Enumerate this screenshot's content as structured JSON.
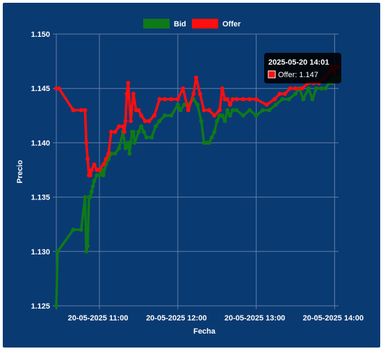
{
  "colors": {
    "background": "#0a3a72",
    "grid": "#5f7fa8",
    "text": "#ffffff",
    "bid": "#0f7a18",
    "offer": "#ff0f0f",
    "tooltip_bg": "#000000"
  },
  "tooltip": {
    "title": "2025-05-20 14:01",
    "label": "Offer: 1.147",
    "series": "Offer",
    "x": "2025-05-20 14:01",
    "y": 1.147
  },
  "chart_data": {
    "type": "line",
    "title": "",
    "xlabel": "Fecha",
    "ylabel": "Precio",
    "legend_position": "top",
    "grid": true,
    "xlim": [
      "2025-05-20 10:27",
      "2025-05-20 14:03"
    ],
    "ylim": [
      1.125,
      1.15
    ],
    "x_ticks": [
      "20-05-2025 11:00",
      "20-05-2025 12:00",
      "20-05-2025 13:00",
      "20-05-2025 14:00"
    ],
    "y_ticks": [
      "1.125",
      "1.130",
      "1.135",
      "1.140",
      "1.145",
      "1.150"
    ],
    "series": [
      {
        "name": "Bid",
        "color": "#0f7a18",
        "x": [
          "2025-05-20 10:27",
          "2025-05-20 10:28",
          "2025-05-20 10:40",
          "2025-05-20 10:46",
          "2025-05-20 10:49",
          "2025-05-20 10:50",
          "2025-05-20 10:51",
          "2025-05-20 10:52",
          "2025-05-20 10:53",
          "2025-05-20 10:54",
          "2025-05-20 10:55",
          "2025-05-20 10:56",
          "2025-05-20 10:58",
          "2025-05-20 11:00",
          "2025-05-20 11:02",
          "2025-05-20 11:03",
          "2025-05-20 11:05",
          "2025-05-20 11:07",
          "2025-05-20 11:09",
          "2025-05-20 11:12",
          "2025-05-20 11:15",
          "2025-05-20 11:18",
          "2025-05-20 11:20",
          "2025-05-20 11:22",
          "2025-05-20 11:23",
          "2025-05-20 11:25",
          "2025-05-20 11:26",
          "2025-05-20 11:27",
          "2025-05-20 11:30",
          "2025-05-20 11:32",
          "2025-05-20 11:34",
          "2025-05-20 11:36",
          "2025-05-20 11:40",
          "2025-05-20 11:43",
          "2025-05-20 11:46",
          "2025-05-20 11:50",
          "2025-05-20 11:55",
          "2025-05-20 12:00",
          "2025-05-20 12:02",
          "2025-05-20 12:05",
          "2025-05-20 12:08",
          "2025-05-20 12:12",
          "2025-05-20 12:15",
          "2025-05-20 12:18",
          "2025-05-20 12:20",
          "2025-05-20 12:22",
          "2025-05-20 12:24",
          "2025-05-20 12:26",
          "2025-05-20 12:28",
          "2025-05-20 12:30",
          "2025-05-20 12:32",
          "2025-05-20 12:34",
          "2025-05-20 12:36",
          "2025-05-20 12:38",
          "2025-05-20 12:40",
          "2025-05-20 12:42",
          "2025-05-20 12:45",
          "2025-05-20 12:50",
          "2025-05-20 12:55",
          "2025-05-20 13:00",
          "2025-05-20 13:05",
          "2025-05-20 13:10",
          "2025-05-20 13:15",
          "2025-05-20 13:20",
          "2025-05-20 13:25",
          "2025-05-20 13:30",
          "2025-05-20 13:33",
          "2025-05-20 13:36",
          "2025-05-20 13:40",
          "2025-05-20 13:43",
          "2025-05-20 13:46",
          "2025-05-20 13:50",
          "2025-05-20 13:53",
          "2025-05-20 13:56",
          "2025-05-20 13:58",
          "2025-05-20 14:00",
          "2025-05-20 14:01",
          "2025-05-20 14:03"
        ],
        "values": [
          1.125,
          1.13,
          1.132,
          1.132,
          1.135,
          1.13,
          1.1305,
          1.135,
          1.135,
          1.1355,
          1.136,
          1.1365,
          1.137,
          1.137,
          1.1375,
          1.137,
          1.138,
          1.1385,
          1.139,
          1.139,
          1.1395,
          1.141,
          1.1395,
          1.14,
          1.139,
          1.141,
          1.141,
          1.14,
          1.141,
          1.1415,
          1.141,
          1.1405,
          1.1405,
          1.1415,
          1.142,
          1.1425,
          1.1425,
          1.1435,
          1.143,
          1.1435,
          1.1435,
          1.144,
          1.1435,
          1.142,
          1.14,
          1.14,
          1.14,
          1.1405,
          1.141,
          1.142,
          1.1425,
          1.1425,
          1.142,
          1.143,
          1.1425,
          1.143,
          1.143,
          1.1425,
          1.143,
          1.1425,
          1.143,
          1.143,
          1.1435,
          1.144,
          1.144,
          1.1445,
          1.145,
          1.144,
          1.145,
          1.144,
          1.145,
          1.145,
          1.145,
          1.1455,
          1.1455,
          1.146,
          1.146,
          1.146
        ]
      },
      {
        "name": "Offer",
        "color": "#ff0f0f",
        "x": [
          "2025-05-20 10:27",
          "2025-05-20 10:29",
          "2025-05-20 10:40",
          "2025-05-20 10:46",
          "2025-05-20 10:49",
          "2025-05-20 10:50",
          "2025-05-20 10:51",
          "2025-05-20 10:52",
          "2025-05-20 10:53",
          "2025-05-20 10:54",
          "2025-05-20 10:56",
          "2025-05-20 10:58",
          "2025-05-20 11:00",
          "2025-05-20 11:03",
          "2025-05-20 11:05",
          "2025-05-20 11:07",
          "2025-05-20 11:09",
          "2025-05-20 11:12",
          "2025-05-20 11:15",
          "2025-05-20 11:18",
          "2025-05-20 11:19",
          "2025-05-20 11:20",
          "2025-05-20 11:21",
          "2025-05-20 11:22",
          "2025-05-20 11:24",
          "2025-05-20 11:26",
          "2025-05-20 11:28",
          "2025-05-20 11:30",
          "2025-05-20 11:32",
          "2025-05-20 11:35",
          "2025-05-20 11:38",
          "2025-05-20 11:42",
          "2025-05-20 11:46",
          "2025-05-20 11:50",
          "2025-05-20 11:55",
          "2025-05-20 12:00",
          "2025-05-20 12:04",
          "2025-05-20 12:08",
          "2025-05-20 12:12",
          "2025-05-20 12:14",
          "2025-05-20 12:17",
          "2025-05-20 12:20",
          "2025-05-20 12:24",
          "2025-05-20 12:28",
          "2025-05-20 12:32",
          "2025-05-20 12:34",
          "2025-05-20 12:36",
          "2025-05-20 12:38",
          "2025-05-20 12:40",
          "2025-05-20 12:42",
          "2025-05-20 12:45",
          "2025-05-20 12:50",
          "2025-05-20 12:55",
          "2025-05-20 13:00",
          "2025-05-20 13:08",
          "2025-05-20 13:14",
          "2025-05-20 13:18",
          "2025-05-20 13:22",
          "2025-05-20 13:26",
          "2025-05-20 13:30",
          "2025-05-20 13:35",
          "2025-05-20 13:40",
          "2025-05-20 13:44",
          "2025-05-20 13:48",
          "2025-05-20 13:52",
          "2025-05-20 13:56",
          "2025-05-20 13:58",
          "2025-05-20 14:00",
          "2025-05-20 14:01",
          "2025-05-20 14:03"
        ],
        "values": [
          1.145,
          1.145,
          1.143,
          1.143,
          1.143,
          1.14,
          1.1385,
          1.137,
          1.137,
          1.1375,
          1.138,
          1.1375,
          1.1375,
          1.138,
          1.1385,
          1.139,
          1.141,
          1.141,
          1.1415,
          1.1415,
          1.141,
          1.142,
          1.1445,
          1.1455,
          1.142,
          1.1445,
          1.143,
          1.143,
          1.1425,
          1.142,
          1.142,
          1.1425,
          1.144,
          1.144,
          1.144,
          1.144,
          1.145,
          1.143,
          1.1445,
          1.146,
          1.1445,
          1.143,
          1.143,
          1.1425,
          1.143,
          1.145,
          1.144,
          1.144,
          1.1435,
          1.144,
          1.144,
          1.144,
          1.144,
          1.144,
          1.1435,
          1.144,
          1.1445,
          1.1445,
          1.145,
          1.145,
          1.145,
          1.1455,
          1.1455,
          1.1455,
          1.146,
          1.1465,
          1.147,
          1.1465,
          1.147,
          1.147
        ]
      }
    ]
  }
}
